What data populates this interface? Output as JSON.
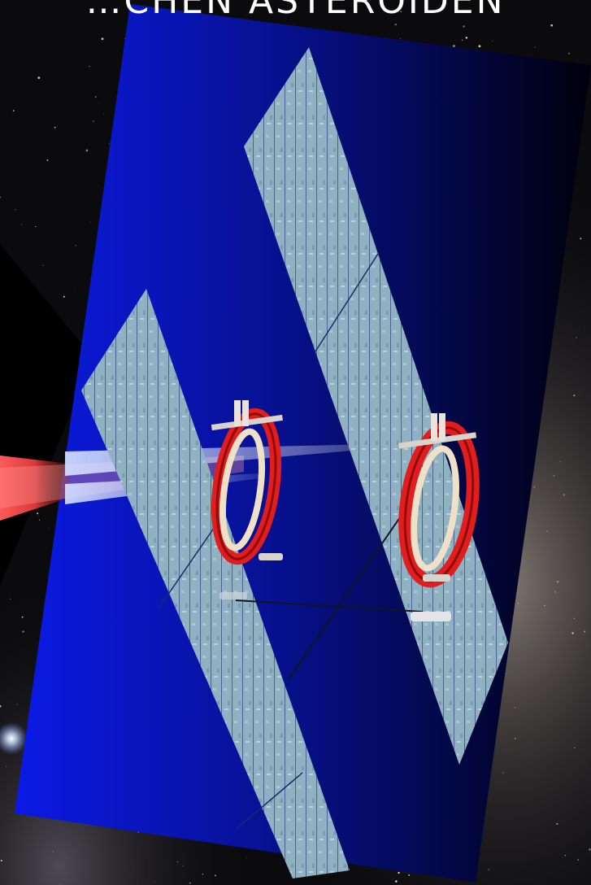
{
  "slide": {
    "title": "…CHEN ASTEROIDEN",
    "background": "starfield",
    "colors": {
      "panel_gradient_start": "#0a18e8",
      "panel_gradient_end": "#00000c",
      "solar_sail": "#8fb4c4",
      "ring_frame": "#e11d1d",
      "inner_ring": "#eedfc6",
      "laser_beam": "#e23030",
      "title_text": "#ffffff"
    }
  }
}
